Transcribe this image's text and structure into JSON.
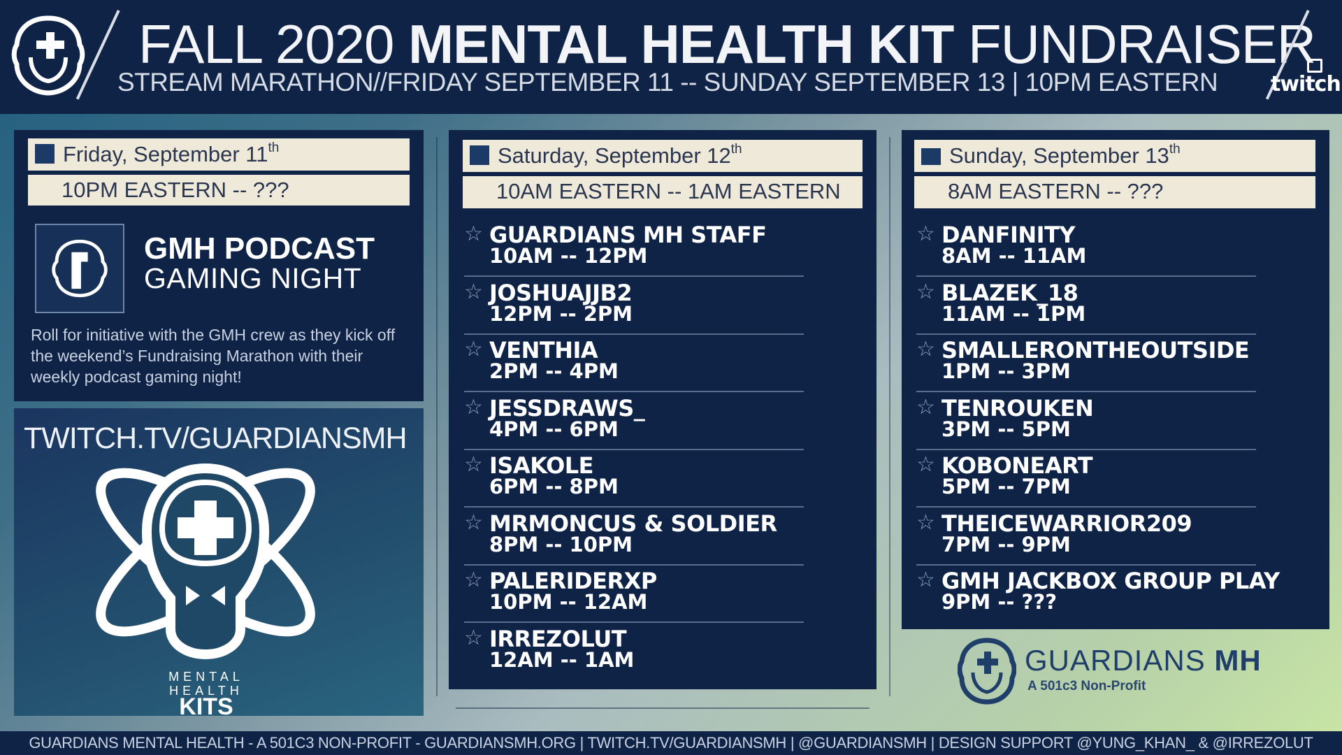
{
  "header": {
    "title_light_1": "FALL 2020 ",
    "title_bold": "MENTAL HEALTH KIT",
    "title_light_2": " FUNDRAISER",
    "subtitle": "STREAM MARATHON//FRIDAY SEPTEMBER 11 -- SUNDAY SEPTEMBER 13 | 10PM EASTERN",
    "platform": "twitch"
  },
  "friday": {
    "date": "Friday, September 11",
    "date_suffix": "th",
    "time_range": "10PM EASTERN -- ???",
    "event_title": "GMH PODCAST",
    "event_subtitle": "GAMING NIGHT",
    "description": "Roll for initiative with the GMH crew as they kick off the weekend’s Fundraising Marathon with their weekly podcast gaming night!",
    "channel_url": "TWITCH.TV/GUARDIANSMH",
    "kit_logo_line1": "MENTAL",
    "kit_logo_line2": "HEALTH",
    "kit_logo_line3": "KITS"
  },
  "saturday": {
    "date": "Saturday, September 12",
    "date_suffix": "th",
    "time_range": "10AM EASTERN -- 1AM EASTERN",
    "slots": [
      {
        "name": "GUARDIANS MH STAFF",
        "time": "10AM -- 12PM"
      },
      {
        "name": "JOSHUAJJB2",
        "time": "12PM -- 2PM"
      },
      {
        "name": "VENTHIA",
        "time": "2PM -- 4PM"
      },
      {
        "name": "JESSDRAWS_",
        "time": "4PM -- 6PM"
      },
      {
        "name": "ISAKOLE",
        "time": "6PM -- 8PM"
      },
      {
        "name": "MRMONCUS & SOLDIER",
        "time": "8PM -- 10PM"
      },
      {
        "name": "PALERIDERXP",
        "time": "10PM -- 12AM"
      },
      {
        "name": "IRREZOLUT",
        "time": "12AM -- 1AM"
      }
    ]
  },
  "sunday": {
    "date": "Sunday, September 13",
    "date_suffix": "th",
    "time_range": "8AM EASTERN -- ???",
    "slots": [
      {
        "name": "DANFINITY",
        "time": "8AM -- 11AM"
      },
      {
        "name": "BLAZEK_18",
        "time": "11AM -- 1PM"
      },
      {
        "name": "SMALLERONTHEOUTSIDE",
        "time": "1PM -- 3PM"
      },
      {
        "name": "TENROUKEN",
        "time": "3PM -- 5PM"
      },
      {
        "name": "KOBONEART",
        "time": "5PM -- 7PM"
      },
      {
        "name": "THEICEWARRIOR209",
        "time": "7PM -- 9PM"
      },
      {
        "name": "GMH JACKBOX GROUP PLAY",
        "time": "9PM -- ???"
      }
    ]
  },
  "brand": {
    "name_light": "GUARDIANS ",
    "name_bold": "MH",
    "tagline": "A 501c3 Non-Profit"
  },
  "footer": "GUARDIANS MENTAL HEALTH - A 501C3 NON-PROFIT - GUARDIANSMH.ORG | TWITCH.TV/GUARDIANSMH | @GUARDIANSMH | DESIGN SUPPORT @YUNG_KHAN_ & @IRREZOLUT",
  "colors": {
    "navy": "#0f2347",
    "cream": "#efe9d9",
    "accent_green": "#c9e6a4"
  }
}
